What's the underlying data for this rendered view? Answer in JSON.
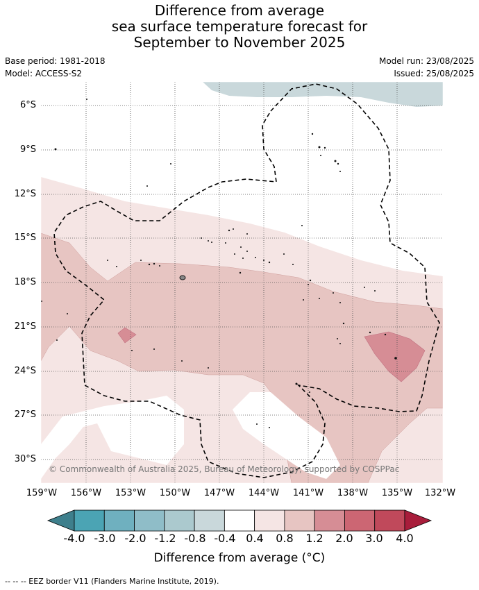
{
  "title": [
    "Difference from average",
    "sea surface temperature forecast for",
    "September to November 2025"
  ],
  "meta": {
    "base_period": "Base period: 1981-2018",
    "model": "Model: ACCESS-S2",
    "model_run": "Model run: 23/08/2025",
    "issued": "Issued: 25/08/2025"
  },
  "lat_ticks": [
    "6°S",
    "9°S",
    "12°S",
    "15°S",
    "18°S",
    "21°S",
    "24°S",
    "27°S",
    "30°S"
  ],
  "lon_ticks": [
    "159°W",
    "156°W",
    "153°W",
    "150°W",
    "147°W",
    "144°W",
    "141°W",
    "138°W",
    "135°W",
    "132°W"
  ],
  "copyright": "© Commonwealth of Australia 2025, Bureau of Meteorology, supported by COSPPac",
  "colorbar": {
    "labels": [
      "-4.0",
      "-3.0",
      "-2.0",
      "-1.2",
      "-0.8",
      "-0.4",
      "0.4",
      "0.8",
      "1.2",
      "2.0",
      "3.0",
      "4.0"
    ],
    "colors": [
      "#3e7f8c",
      "#4ba4b4",
      "#6fb0bf",
      "#8fbdc8",
      "#abc9ce",
      "#c9d8db",
      "#ffffff",
      "#f5e5e4",
      "#e7c5c2",
      "#d68d95",
      "#cc6673",
      "#c0495b",
      "#a81d3b"
    ],
    "title": "Difference from average (°C)"
  },
  "legend_eez": "--  --  -- EEZ border V11 (Flanders Marine Institute, 2019)."
}
